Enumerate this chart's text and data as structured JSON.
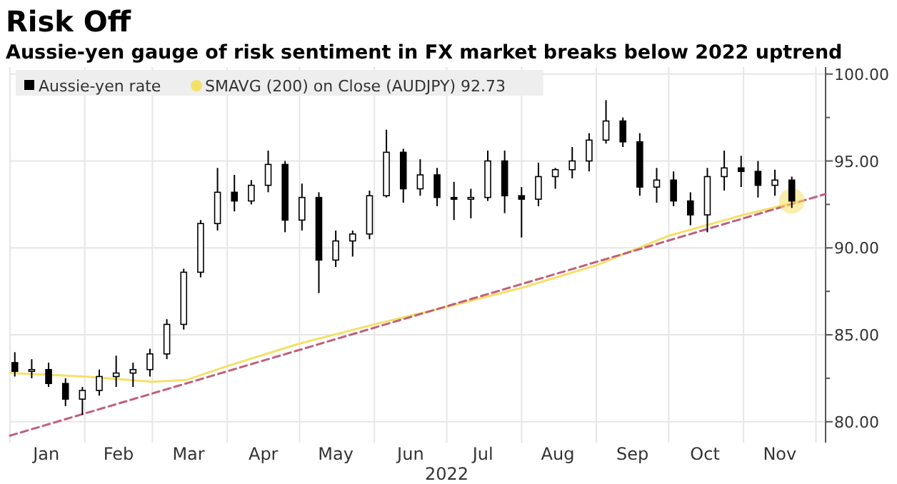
{
  "chart_data": {
    "type": "candlestick",
    "title": "Risk Off",
    "subtitle": "Aussie-yen gauge of risk sentiment in FX market breaks below 2022 uptrend",
    "xlabel": "2022",
    "xlim": [
      "2022-01-01",
      "2022-12-05"
    ],
    "xticks": [
      {
        "value": "2022-01-01",
        "label": null
      },
      {
        "value": "2022-01-16",
        "label": "Jan"
      },
      {
        "value": "2022-02-01",
        "label": null
      },
      {
        "value": "2022-02-15",
        "label": "Feb"
      },
      {
        "value": "2022-03-01",
        "label": null
      },
      {
        "value": "2022-03-16",
        "label": "Mar"
      },
      {
        "value": "2022-04-01",
        "label": null
      },
      {
        "value": "2022-04-16",
        "label": "Apr"
      },
      {
        "value": "2022-05-01",
        "label": null
      },
      {
        "value": "2022-05-16",
        "label": "May"
      },
      {
        "value": "2022-06-01",
        "label": null
      },
      {
        "value": "2022-06-16",
        "label": "Jun"
      },
      {
        "value": "2022-07-01",
        "label": null
      },
      {
        "value": "2022-07-16",
        "label": "Jul"
      },
      {
        "value": "2022-08-01",
        "label": null
      },
      {
        "value": "2022-08-16",
        "label": "Aug"
      },
      {
        "value": "2022-09-01",
        "label": null
      },
      {
        "value": "2022-09-16",
        "label": "Sep"
      },
      {
        "value": "2022-10-01",
        "label": null
      },
      {
        "value": "2022-10-16",
        "label": "Oct"
      },
      {
        "value": "2022-11-01",
        "label": null
      },
      {
        "value": "2022-11-16",
        "label": "Nov"
      },
      {
        "value": "2022-12-01",
        "label": null
      }
    ],
    "ylim": [
      78.8,
      100.4
    ],
    "yticks": [
      {
        "value": 80,
        "label": "80.00"
      },
      {
        "value": 82.5,
        "label": null
      },
      {
        "value": 85,
        "label": "85.00"
      },
      {
        "value": 87.5,
        "label": null
      },
      {
        "value": 90,
        "label": "90.00"
      },
      {
        "value": 92.5,
        "label": null
      },
      {
        "value": 95,
        "label": "95.00"
      },
      {
        "value": 97.5,
        "label": null
      },
      {
        "value": 100,
        "label": "100.00"
      }
    ],
    "grid": true,
    "legend": "top left",
    "series": [
      {
        "name": "Aussie-yen rate",
        "color": "#000000",
        "x": [
          "2022-01-03",
          "2022-01-10",
          "2022-01-17",
          "2022-01-24",
          "2022-01-31",
          "2022-02-07",
          "2022-02-14",
          "2022-02-21",
          "2022-02-28",
          "2022-03-07",
          "2022-03-14",
          "2022-03-21",
          "2022-03-28",
          "2022-04-04",
          "2022-04-11",
          "2022-04-18",
          "2022-04-25",
          "2022-05-02",
          "2022-05-09",
          "2022-05-16",
          "2022-05-23",
          "2022-05-30",
          "2022-06-06",
          "2022-06-13",
          "2022-06-20",
          "2022-06-27",
          "2022-07-04",
          "2022-07-11",
          "2022-07-18",
          "2022-07-25",
          "2022-08-01",
          "2022-08-08",
          "2022-08-15",
          "2022-08-22",
          "2022-08-29",
          "2022-09-05",
          "2022-09-12",
          "2022-09-19",
          "2022-09-26",
          "2022-10-03",
          "2022-10-10",
          "2022-10-17",
          "2022-10-24",
          "2022-10-31",
          "2022-11-07",
          "2022-11-14",
          "2022-11-21"
        ],
        "ohlc": [
          [
            83.4,
            84.0,
            82.6,
            82.9
          ],
          [
            82.9,
            83.6,
            82.5,
            83.0
          ],
          [
            83.0,
            83.4,
            82.0,
            82.2
          ],
          [
            82.2,
            82.5,
            80.9,
            81.3
          ],
          [
            81.3,
            82.0,
            80.4,
            81.8
          ],
          [
            81.8,
            83.0,
            81.5,
            82.6
          ],
          [
            82.6,
            83.8,
            82.0,
            82.8
          ],
          [
            82.8,
            83.4,
            82.0,
            83.0
          ],
          [
            83.0,
            84.2,
            82.6,
            83.9
          ],
          [
            83.9,
            85.9,
            83.6,
            85.6
          ],
          [
            85.6,
            88.8,
            85.3,
            88.6
          ],
          [
            88.6,
            91.6,
            88.3,
            91.4
          ],
          [
            91.4,
            94.6,
            91.0,
            93.2
          ],
          [
            93.2,
            94.2,
            92.1,
            92.7
          ],
          [
            92.7,
            93.9,
            92.5,
            93.6
          ],
          [
            93.6,
            95.6,
            93.2,
            94.8
          ],
          [
            94.8,
            95.0,
            90.9,
            91.6
          ],
          [
            91.6,
            93.7,
            91.0,
            92.9
          ],
          [
            92.9,
            93.2,
            87.4,
            89.3
          ],
          [
            89.3,
            91.0,
            88.9,
            90.4
          ],
          [
            90.4,
            91.0,
            89.5,
            90.8
          ],
          [
            90.8,
            93.3,
            90.5,
            93.0
          ],
          [
            93.0,
            96.8,
            92.9,
            95.5
          ],
          [
            95.5,
            95.7,
            92.6,
            93.4
          ],
          [
            93.4,
            95.1,
            93.0,
            94.2
          ],
          [
            94.2,
            94.6,
            92.4,
            92.9
          ],
          [
            92.9,
            93.8,
            91.6,
            92.8
          ],
          [
            92.8,
            93.4,
            91.7,
            92.9
          ],
          [
            92.9,
            95.6,
            92.7,
            95.0
          ],
          [
            95.0,
            95.6,
            92.0,
            93.0
          ],
          [
            93.0,
            93.5,
            90.6,
            92.8
          ],
          [
            92.8,
            94.9,
            92.4,
            94.1
          ],
          [
            94.1,
            94.6,
            93.4,
            94.5
          ],
          [
            94.5,
            95.8,
            94.0,
            95.0
          ],
          [
            95.0,
            96.6,
            94.4,
            96.2
          ],
          [
            96.2,
            98.5,
            96.0,
            97.3
          ],
          [
            97.3,
            97.5,
            95.8,
            96.1
          ],
          [
            96.1,
            96.6,
            93.0,
            93.5
          ],
          [
            93.5,
            94.6,
            92.6,
            93.9
          ],
          [
            93.9,
            94.4,
            92.4,
            92.7
          ],
          [
            92.7,
            93.2,
            91.3,
            91.9
          ],
          [
            91.9,
            94.6,
            90.9,
            94.1
          ],
          [
            94.1,
            95.6,
            93.3,
            94.6
          ],
          [
            94.6,
            95.3,
            93.5,
            94.4
          ],
          [
            94.4,
            95.0,
            92.9,
            93.6
          ],
          [
            93.6,
            94.5,
            93.0,
            93.9
          ],
          [
            93.9,
            94.1,
            92.3,
            92.7
          ]
        ]
      },
      {
        "name": "SMAVG (200)  on Close (AUDJPY) 92.73",
        "type": "line",
        "color": "#f5e06a",
        "x": [
          "2022-01-01",
          "2022-02-01",
          "2022-03-01",
          "2022-03-15",
          "2022-04-01",
          "2022-05-01",
          "2022-06-01",
          "2022-07-01",
          "2022-08-01",
          "2022-09-01",
          "2022-10-01",
          "2022-11-01",
          "2022-11-25"
        ],
        "values": [
          82.8,
          82.6,
          82.3,
          82.4,
          83.2,
          84.5,
          85.6,
          86.6,
          87.7,
          89.0,
          90.7,
          91.9,
          92.7
        ]
      },
      {
        "type": "line",
        "color": "#c0607a",
        "line_style": "dashed",
        "x": [
          "2022-01-01",
          "2022-12-05"
        ],
        "values": [
          79.2,
          93.1
        ]
      }
    ]
  }
}
